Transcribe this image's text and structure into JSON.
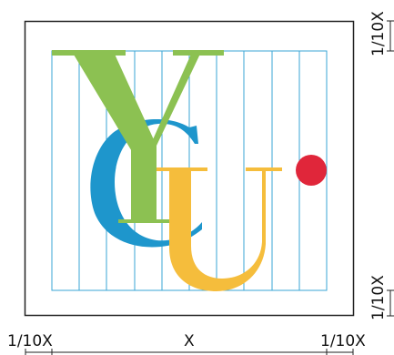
{
  "diagram": {
    "letters": [
      "Y",
      "C",
      "U"
    ],
    "dimension_labels": {
      "left_margin": "1/10X",
      "width": "X",
      "right_margin": "1/10X",
      "top_margin": "1/10X",
      "bottom_margin": "1/10X"
    },
    "colors": {
      "frame": "#222222",
      "grid": "#3aa6d6",
      "y_letter": "#8cc152",
      "c_letter": "#1e96cc",
      "u_letter": "#f5bd3c",
      "dot": "#e0263a"
    },
    "grid_columns": 10
  }
}
